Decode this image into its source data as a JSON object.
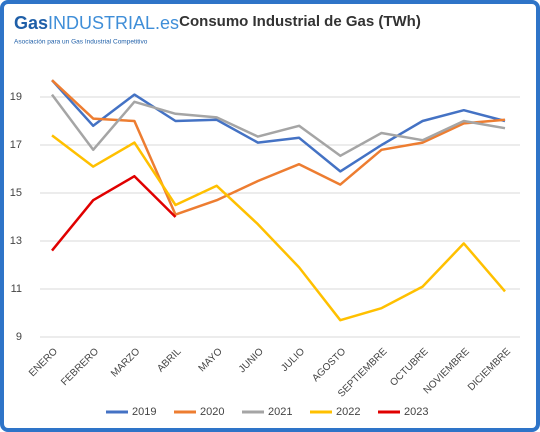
{
  "logo": {
    "brand": "Gas",
    "suffix": "INDUSTRIAL.es",
    "tagline": "Asociación para un Gas Industrial Competitivo"
  },
  "chart_data": {
    "type": "line",
    "title": "Consumo Industrial de Gas (TWh)",
    "categories": [
      "ENERO",
      "FEBRERO",
      "MARZO",
      "ABRIL",
      "MAYO",
      "JUNIO",
      "JULIO",
      "AGOSTO",
      "SEPTIEMBRE",
      "OCTUBRE",
      "NOVIEMBRE",
      "DICIEMBRE"
    ],
    "series": [
      {
        "name": "2019",
        "color": "#4472c4",
        "values": [
          19.7,
          17.8,
          19.1,
          18.0,
          18.05,
          17.1,
          17.3,
          15.9,
          17.0,
          18.0,
          18.45,
          18.0
        ]
      },
      {
        "name": "2020",
        "color": "#ed7d31",
        "values": [
          19.7,
          18.1,
          18.0,
          14.1,
          14.7,
          15.5,
          16.2,
          15.35,
          16.8,
          17.1,
          17.9,
          18.05
        ]
      },
      {
        "name": "2021",
        "color": "#a5a5a5",
        "values": [
          19.1,
          16.8,
          18.8,
          18.3,
          18.15,
          17.35,
          17.8,
          16.55,
          17.5,
          17.2,
          18.0,
          17.7
        ]
      },
      {
        "name": "2022",
        "color": "#ffc000",
        "values": [
          17.4,
          16.1,
          17.1,
          14.5,
          15.3,
          13.7,
          11.9,
          9.7,
          10.2,
          11.1,
          12.9,
          10.9
        ]
      },
      {
        "name": "2023",
        "color": "#e00000",
        "values": [
          12.6,
          14.7,
          15.7,
          14.0,
          null,
          null,
          null,
          null,
          null,
          null,
          null,
          null
        ]
      }
    ],
    "ylim": [
      9,
      20
    ],
    "yticks": [
      9,
      11,
      13,
      15,
      17,
      19
    ],
    "grid": true,
    "legend": "bottom"
  }
}
